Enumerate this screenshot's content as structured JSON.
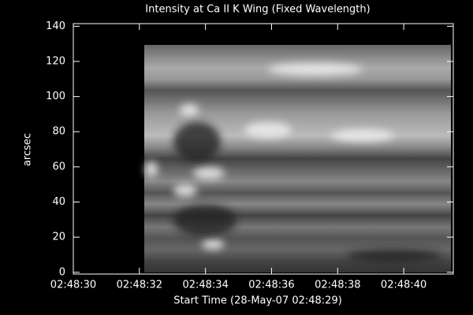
{
  "chart_data": {
    "type": "image",
    "title": "Intensity at Ca II K Wing (Fixed Wavelength)",
    "xlabel": "Start Time (28-May-07 02:48:29)",
    "ylabel": "arcsec",
    "xlim": [
      1,
      12.5
    ],
    "xticks": [
      {
        "value": 1,
        "label": "02:48:30"
      },
      {
        "value": 3,
        "label": "02:48:32"
      },
      {
        "value": 5,
        "label": "02:48:34"
      },
      {
        "value": 7,
        "label": "02:48:36"
      },
      {
        "value": 9,
        "label": "02:48:38"
      },
      {
        "value": 11,
        "label": "02:48:40"
      }
    ],
    "ylim": [
      -1,
      141.5
    ],
    "yticks": [
      0,
      20,
      40,
      60,
      80,
      100,
      120,
      140
    ]
  }
}
